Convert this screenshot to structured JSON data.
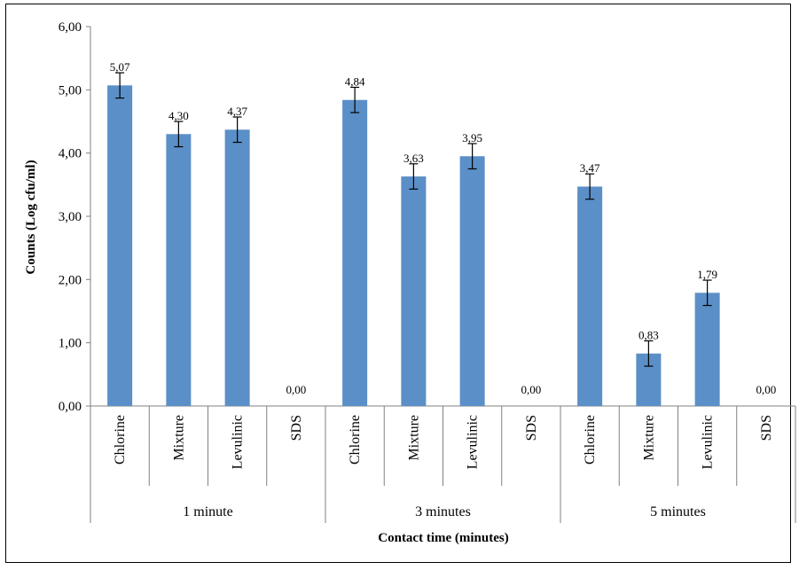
{
  "chart_data": {
    "type": "bar",
    "title": "",
    "xlabel": "Contact time (minutes)",
    "ylabel": "Counts (Log cfu/ml)",
    "ylim": [
      0,
      6
    ],
    "yticks": [
      "0,00",
      "1,00",
      "2,00",
      "3,00",
      "4,00",
      "5,00",
      "6,00"
    ],
    "grid": false,
    "bar_color": "#5b8fc7",
    "groups": [
      {
        "label": "1 minute",
        "bars": [
          {
            "category": "Chlorine",
            "value": 5.07,
            "label": "5,07",
            "error": 0.2
          },
          {
            "category": "Mixture",
            "value": 4.3,
            "label": "4,30",
            "error": 0.2
          },
          {
            "category": "Levulinic",
            "value": 4.37,
            "label": "4,37",
            "error": 0.2
          },
          {
            "category": "SDS",
            "value": 0.0,
            "label": "0,00",
            "error": 0
          }
        ]
      },
      {
        "label": "3 minutes",
        "bars": [
          {
            "category": "Chlorine",
            "value": 4.84,
            "label": "4,84",
            "error": 0.2
          },
          {
            "category": "Mixture",
            "value": 3.63,
            "label": "3,63",
            "error": 0.2
          },
          {
            "category": "Levulinic",
            "value": 3.95,
            "label": "3,95",
            "error": 0.2
          },
          {
            "category": "SDS",
            "value": 0.0,
            "label": "0,00",
            "error": 0
          }
        ]
      },
      {
        "label": "5 minutes",
        "bars": [
          {
            "category": "Chlorine",
            "value": 3.47,
            "label": "3,47",
            "error": 0.2
          },
          {
            "category": "Mixture",
            "value": 0.83,
            "label": "0,83",
            "error": 0.2
          },
          {
            "category": "Levulinic",
            "value": 1.79,
            "label": "1,79",
            "error": 0.2
          },
          {
            "category": "SDS",
            "value": 0.0,
            "label": "0,00",
            "error": 0
          }
        ]
      }
    ]
  }
}
